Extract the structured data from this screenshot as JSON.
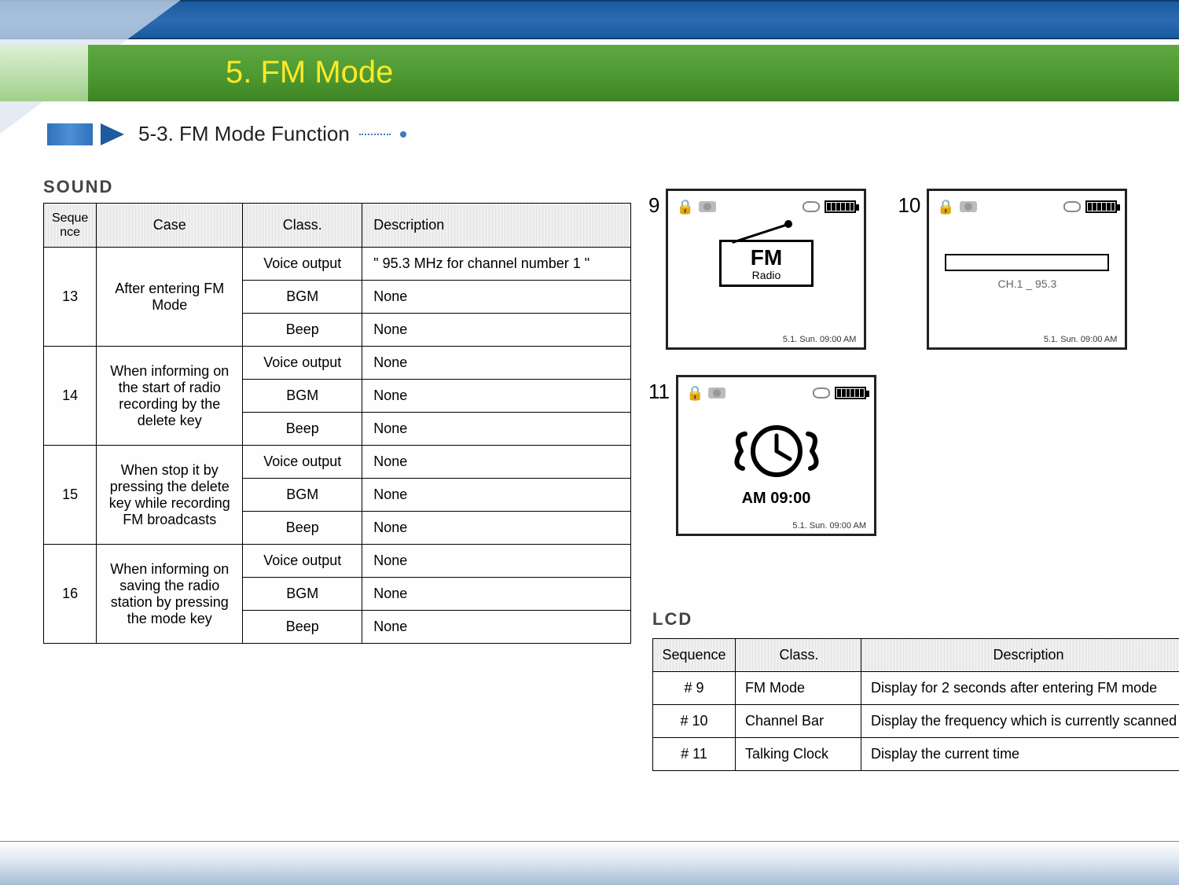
{
  "header": {
    "title": "5. FM Mode",
    "subtitle": "5-3. FM Mode Function"
  },
  "sections": {
    "sound_label": "SOUND",
    "lcd_label": "LCD"
  },
  "sound_table": {
    "headers": {
      "seq": "Seque\nnce",
      "case": "Case",
      "class": "Class.",
      "desc": "Description"
    },
    "groups": [
      {
        "seq": "13",
        "case": "After entering FM Mode",
        "rows": [
          {
            "class": "Voice output",
            "desc": "\" 95.3 MHz for channel number 1 \""
          },
          {
            "class": "BGM",
            "desc": "None"
          },
          {
            "class": "Beep",
            "desc": "None"
          }
        ]
      },
      {
        "seq": "14",
        "case": "When informing on the start of radio recording by the delete key",
        "rows": [
          {
            "class": "Voice output",
            "desc": "None"
          },
          {
            "class": "BGM",
            "desc": "None"
          },
          {
            "class": "Beep",
            "desc": "None"
          }
        ]
      },
      {
        "seq": "15",
        "case": "When stop it by pressing the delete key while recording FM broadcasts",
        "rows": [
          {
            "class": "Voice output",
            "desc": "None"
          },
          {
            "class": "BGM",
            "desc": "None"
          },
          {
            "class": "Beep",
            "desc": "None"
          }
        ]
      },
      {
        "seq": "16",
        "case": "When informing on saving the radio station by pressing the mode key",
        "rows": [
          {
            "class": "Voice output",
            "desc": "None"
          },
          {
            "class": "BGM",
            "desc": "None"
          },
          {
            "class": "Beep",
            "desc": "None"
          }
        ]
      }
    ]
  },
  "screens": {
    "s9": {
      "num": "9",
      "fm_big": "FM",
      "fm_small": "Radio",
      "time": "5.1. Sun. 09:00 AM"
    },
    "s10": {
      "num": "10",
      "ch_label": "CH.1 _ 95.3",
      "time": "5.1. Sun. 09:00 AM"
    },
    "s11": {
      "num": "11",
      "clock_text": "AM 09:00",
      "time": "5.1. Sun. 09:00 AM"
    }
  },
  "lcd_table": {
    "headers": {
      "seq": "Sequence",
      "class": "Class.",
      "desc": "Description"
    },
    "rows": [
      {
        "seq": "# 9",
        "class": "FM Mode",
        "desc": "Display for 2 seconds after entering FM mode"
      },
      {
        "seq": "# 10",
        "class": "Channel Bar",
        "desc": "Display the frequency which is currently scanned"
      },
      {
        "seq": "# 11",
        "class": "Talking Clock",
        "desc": "Display the current time"
      }
    ]
  },
  "colors": {
    "title_text": "#ffe926",
    "green_band": "#4c9730",
    "blue_band": "#1a5a9e"
  }
}
